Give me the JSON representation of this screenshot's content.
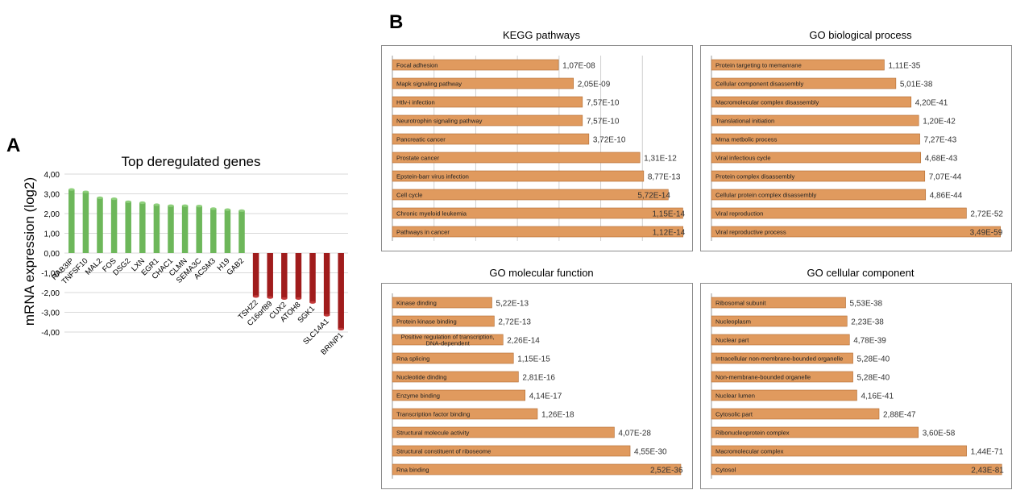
{
  "chart_data": [
    {
      "panel": "A",
      "type": "bar",
      "title": "Top deregulated genes",
      "ylabel": "mRNA expression (log2)",
      "ylim": [
        -4,
        4
      ],
      "yticks": [
        "4,00",
        "3,00",
        "2,00",
        "1,00",
        "0,00",
        "-1,00",
        "-2,00",
        "-3,00",
        "-4,00"
      ],
      "categories": [
        "RAB3IP",
        "TNFSF10",
        "MAL2",
        "FOS",
        "DSG2",
        "LXN",
        "EGR1",
        "CHAC1",
        "CLMN",
        "SEMA3C",
        "ACSM3",
        "H19",
        "GAB2",
        "TSHZ2",
        "C16orf89",
        "CUX2",
        "ATOH8",
        "SGK1",
        "SLC14A1",
        "BRINP1"
      ],
      "values": [
        3.22,
        3.1,
        2.8,
        2.75,
        2.6,
        2.55,
        2.45,
        2.4,
        2.4,
        2.38,
        2.25,
        2.2,
        2.15,
        -2.2,
        -2.25,
        -2.3,
        -2.3,
        -2.5,
        -3.15,
        -3.85
      ],
      "colors": {
        "up": "#6db75a",
        "down": "#a01c1c"
      },
      "grid": true
    },
    {
      "panel": "B",
      "type": "bar",
      "title": "KEGG pathways",
      "orientation": "horizontal",
      "categories": [
        "Focal adhesion",
        "Mapk signaling pathway",
        "Htlv-i infection",
        "Neurotrophin signaling pathway",
        "Pancreatic cancer",
        "Prostate cancer",
        "Epstein-barr virus infection",
        "Cell cycle",
        "Chronic myeloid leukemia",
        "Pathways in cancer"
      ],
      "labels": [
        "1,07E-08",
        "2,05E-09",
        "7,57E-10",
        "7,57E-10",
        "3,72E-10",
        "1,31E-12",
        "8,77E-13",
        "5,72E-14",
        "1,15E-14",
        "1,12E-14"
      ],
      "values": [
        7.97,
        8.69,
        9.12,
        9.12,
        9.43,
        11.88,
        12.06,
        13.24,
        13.94,
        13.95
      ],
      "xlim": [
        0,
        14
      ],
      "grid": true
    },
    {
      "type": "bar",
      "title": "GO biological process",
      "orientation": "horizontal",
      "categories": [
        "Protein targeting to memanrane",
        "Cellular component disassembly",
        "Macromolecular complex disassembly",
        "Translational initiation",
        "Mrna metbolic process",
        "Viral infectious cycle",
        "Protein complex disassembly",
        "Cellular protein complex disassembly",
        "Viral reproduction",
        "Viral reproductive process"
      ],
      "labels": [
        "1,11E-35",
        "5,01E-38",
        "4,20E-41",
        "1,20E-42",
        "7,27E-43",
        "4,68E-43",
        "7,07E-44",
        "4,86E-44",
        "2,72E-52",
        "3,49E-59"
      ],
      "values": [
        34.95,
        37.3,
        40.38,
        41.92,
        42.14,
        42.33,
        43.15,
        43.31,
        51.57,
        58.46
      ],
      "xlim": [
        0,
        59
      ],
      "grid": false
    },
    {
      "type": "bar",
      "title": "GO molecular function",
      "orientation": "horizontal",
      "categories": [
        "Kinase dinding",
        "Protein kinase binding",
        "Positive regulation of transcription, DNA-dependent",
        "Rna splicing",
        "Nucleotide dinding",
        "Enzyme binding",
        "Transcription factor binding",
        "Structural molecule activity",
        "Structural constituent of riboseome",
        "Rna binding"
      ],
      "labels": [
        "5,22E-13",
        "2,72E-13",
        "2,26E-14",
        "1,15E-15",
        "2,81E-16",
        "4,14E-17",
        "1,26E-18",
        "4,07E-28",
        "4,55E-30",
        "2,52E-36"
      ],
      "values": [
        12.28,
        12.57,
        13.65,
        14.94,
        15.55,
        16.38,
        17.9,
        27.39,
        29.34,
        35.6
      ],
      "xlim": [
        0,
        36
      ],
      "grid": false
    },
    {
      "type": "bar",
      "title": "GO cellular component",
      "orientation": "horizontal",
      "categories": [
        "Ribosomal subunit",
        "Nucleoplasm",
        "Nuclear part",
        "Intracellular non-membrane-bounded organelle",
        "Non-membrane-bounded organelle",
        "Nuclear lumen",
        "Cytosolic part",
        "Ribonucleoprotein complex",
        "Macromolecular complex",
        "Cytosol"
      ],
      "labels": [
        "5,53E-38",
        "2,23E-38",
        "4,78E-39",
        "5,28E-40",
        "5,28E-40",
        "4,16E-41",
        "2,88E-47",
        "3,60E-58",
        "1,44E-71",
        "2,43E-81"
      ],
      "values": [
        37.26,
        37.65,
        38.32,
        39.28,
        39.28,
        40.38,
        46.54,
        57.44,
        70.84,
        80.61
      ],
      "xlim": [
        0,
        81
      ],
      "grid": false
    }
  ],
  "panel_letters": {
    "a": "A",
    "b": "B"
  },
  "colors": {
    "bar_fill": "#e09a5e",
    "bar_stroke": "#b06a30",
    "frame": "#8c8c8c",
    "grid": "#d0d0d0"
  }
}
